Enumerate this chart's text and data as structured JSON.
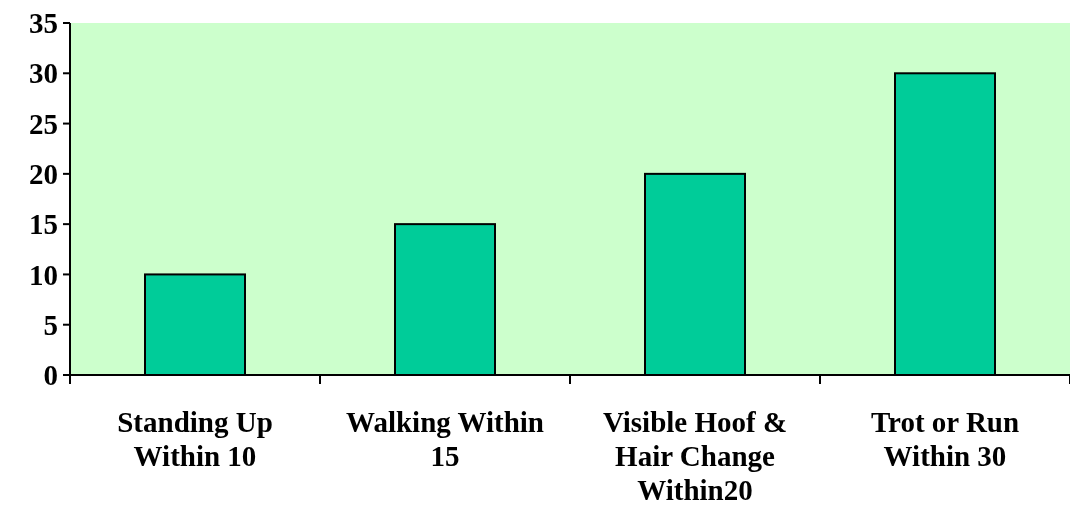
{
  "chart_data": {
    "type": "bar",
    "categories": [
      "Standing Up Within 10",
      "Walking Within 15",
      "Visible Hoof & Hair Change Within20",
      "Trot or Run Within 30"
    ],
    "values": [
      10,
      15,
      20,
      30
    ],
    "color": "#00cc99",
    "ylim": [
      0,
      35
    ],
    "yticks": [
      0,
      5,
      10,
      15,
      20,
      25,
      30,
      35
    ],
    "grid": false
  }
}
